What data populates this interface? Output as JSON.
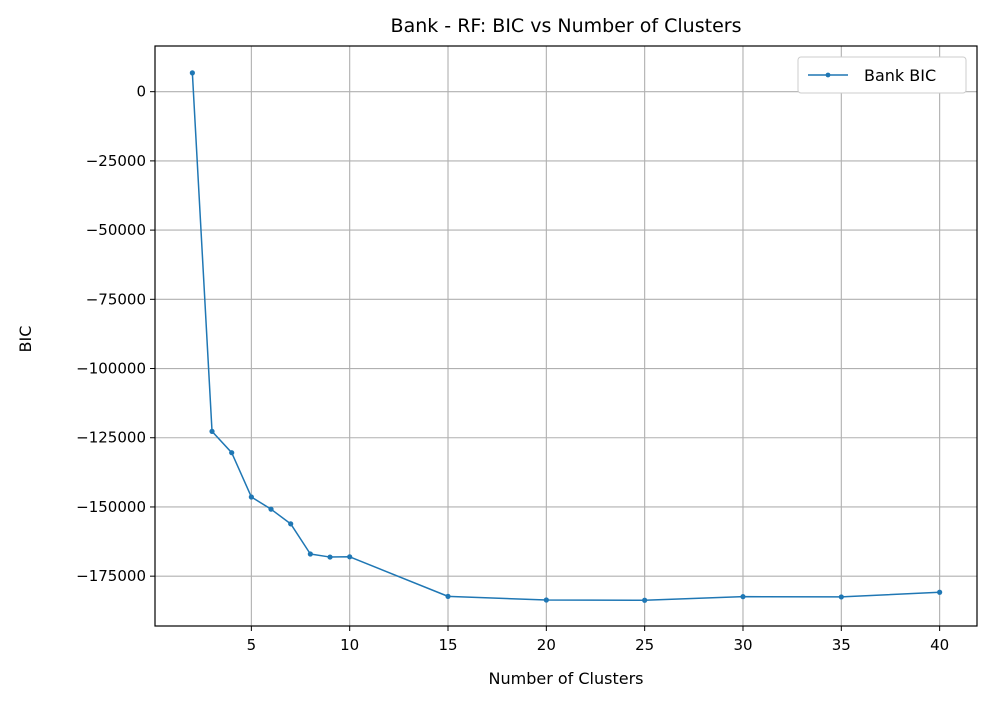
{
  "chart_data": {
    "type": "line",
    "title": "Bank - RF: BIC vs Number of Clusters",
    "xlabel": "Number of Clusters",
    "ylabel": "BIC",
    "xlim": [
      0.1,
      41.9
    ],
    "ylim": [
      -193000,
      16500
    ],
    "xticks": [
      5,
      10,
      15,
      20,
      25,
      30,
      35,
      40
    ],
    "xtick_labels": [
      "5",
      "10",
      "15",
      "20",
      "25",
      "30",
      "35",
      "40"
    ],
    "yticks": [
      0,
      -25000,
      -50000,
      -75000,
      -100000,
      -125000,
      -150000,
      -175000
    ],
    "ytick_labels": [
      "0",
      "−25000",
      "−50000",
      "−75000",
      "−100000",
      "−125000",
      "−150000",
      "−175000"
    ],
    "grid": true,
    "legend_position": "top-right",
    "series": [
      {
        "name": "Bank BIC",
        "color": "#1f77b4",
        "x": [
          2,
          3,
          4,
          5,
          6,
          7,
          8,
          9,
          10,
          15,
          20,
          25,
          30,
          35,
          40
        ],
        "y": [
          6800,
          -122700,
          -130400,
          -146400,
          -150800,
          -156100,
          -167000,
          -168100,
          -168000,
          -182300,
          -183600,
          -183700,
          -182400,
          -182500,
          -180800
        ]
      }
    ]
  }
}
